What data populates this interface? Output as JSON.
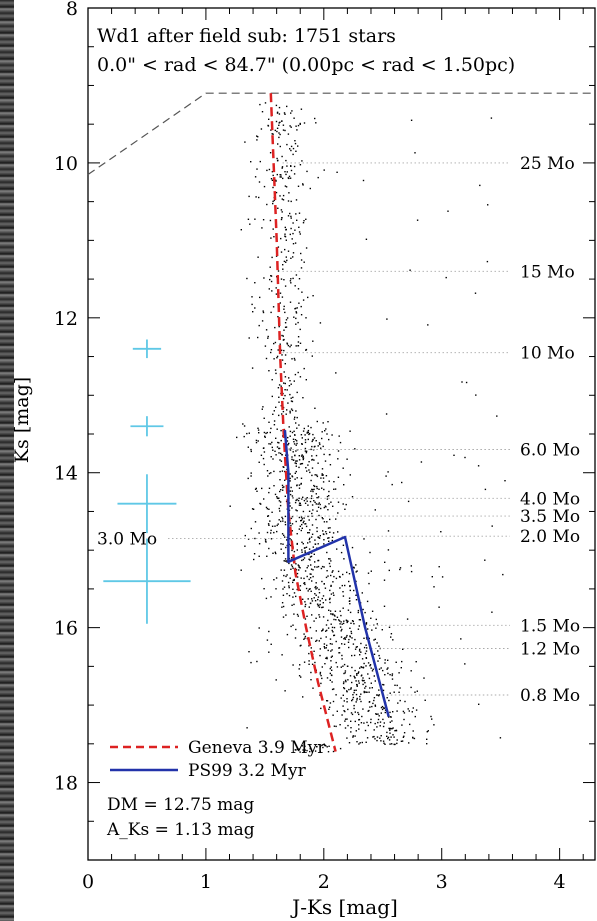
{
  "chart_data": {
    "type": "scatter",
    "title_line1": "Wd1 after field sub: 1751 stars",
    "title_line2": "0.0\" < rad < 84.7\" (0.00pc < rad < 1.50pc)",
    "xlabel": "J-Ks [mag]",
    "ylabel": "Ks [mag]",
    "xlim": [
      0,
      4.3
    ],
    "ylim": [
      19,
      8
    ],
    "y_inverted": true,
    "x_ticks": [
      0,
      1,
      2,
      3,
      4
    ],
    "y_ticks": [
      8,
      10,
      12,
      14,
      16,
      18
    ],
    "grid": false,
    "legend_position": "bottom-left",
    "legend": [
      {
        "label": "Geneva 3.9 Myr",
        "color": "#dd2222",
        "style": "dashed"
      },
      {
        "label": "PS99 3.2 Myr",
        "color": "#2233aa",
        "style": "solid"
      }
    ],
    "annotations": [
      "DM = 12.75 mag",
      "A_Ks = 1.13 mag"
    ],
    "mass_labels": [
      {
        "label": "25 Mo",
        "ks": 10.0,
        "line_from_x": 1.65
      },
      {
        "label": "15 Mo",
        "ks": 11.4,
        "line_from_x": 1.65
      },
      {
        "label": "10 Mo",
        "ks": 12.45,
        "line_from_x": 1.65
      },
      {
        "label": "6.0 Mo",
        "ks": 13.7,
        "line_from_x": 1.7
      },
      {
        "label": "4.0 Mo",
        "ks": 14.33,
        "line_from_x": 1.7
      },
      {
        "label": "3.5 Mo",
        "ks": 14.56,
        "line_from_x": 1.7
      },
      {
        "label": "2.0 Mo",
        "ks": 14.82,
        "line_from_x": 2.15
      },
      {
        "label": "1.5 Mo",
        "ks": 15.97,
        "line_from_x": 2.35
      },
      {
        "label": "1.2 Mo",
        "ks": 16.27,
        "line_from_x": 2.4
      },
      {
        "label": "0.8 Mo",
        "ks": 16.87,
        "line_from_x": 2.5
      }
    ],
    "left_mass_label": {
      "label": "3.0 Mo",
      "ks": 14.85,
      "line_to_x": 1.65
    },
    "geneva_isochrone": {
      "x": [
        1.55,
        1.6,
        1.63,
        1.66,
        1.7,
        1.76,
        1.85,
        1.95,
        2.05,
        2.1
      ],
      "y": [
        9.1,
        11.0,
        12.5,
        13.5,
        14.5,
        15.3,
        16.0,
        16.7,
        17.3,
        17.6
      ]
    },
    "ps99_isochrone": {
      "x": [
        1.67,
        1.7,
        1.7,
        2.18,
        2.35,
        2.55
      ],
      "y": [
        13.45,
        14.0,
        15.15,
        14.83,
        16.0,
        17.15
      ]
    },
    "error_bars": [
      {
        "x": 0.5,
        "y": 12.4,
        "xerr": 0.12,
        "yerr": 0.12
      },
      {
        "x": 0.5,
        "y": 13.4,
        "xerr": 0.14,
        "yerr": 0.13
      },
      {
        "x": 0.5,
        "y": 14.4,
        "xerr": 0.25,
        "yerr": 0.38
      },
      {
        "x": 0.5,
        "y": 15.4,
        "xerr": 0.37,
        "yerr": 0.55
      }
    ],
    "completeness_line": {
      "x": [
        0,
        1.0,
        4.3
      ],
      "y": [
        10.15,
        9.1,
        9.1
      ]
    },
    "n_stars": 1751,
    "colors": {
      "background": "#000000",
      "plot_bg": "#ffffff",
      "points": "#000000",
      "error_bars": "#5fc8e6",
      "axis_text": "#000000"
    }
  }
}
